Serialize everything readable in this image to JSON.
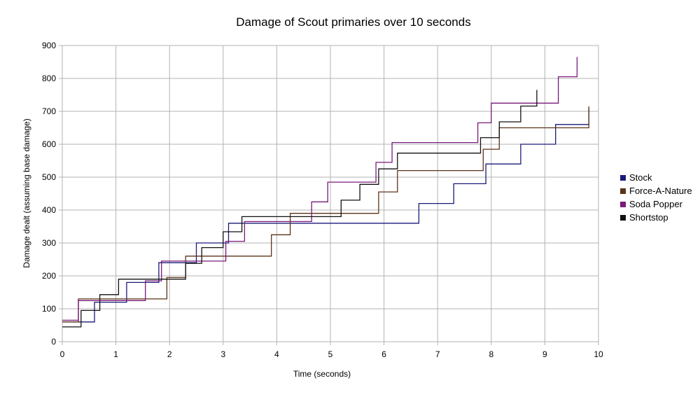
{
  "chart_data": {
    "type": "line",
    "title": "Damage of Scout primaries over 10 seconds",
    "xlabel": "Time (seconds)",
    "ylabel": "Damage dealt (assuming base damage)",
    "xlim": [
      0,
      10
    ],
    "ylim": [
      0,
      900
    ],
    "x_ticks": [
      "0",
      "1",
      "2",
      "3",
      "4",
      "5",
      "6",
      "7",
      "8",
      "9",
      "10"
    ],
    "y_ticks": [
      "0",
      "100",
      "200",
      "300",
      "400",
      "500",
      "600",
      "700",
      "800",
      "900"
    ],
    "grid": true,
    "legend_position": "right",
    "step": true,
    "series": [
      {
        "name": "Stock",
        "color": "#1a1a7a",
        "x": [
          0,
          0.6,
          0.6,
          1.2,
          1.2,
          1.8,
          1.8,
          2.5,
          2.5,
          3.1,
          3.1,
          3.7,
          3.7,
          6.65,
          6.65,
          7.3,
          7.3,
          7.9,
          7.9,
          8.55,
          8.55,
          9.2,
          9.2,
          9.82,
          9.82
        ],
        "y": [
          60,
          60,
          120,
          120,
          180,
          180,
          240,
          240,
          300,
          300,
          360,
          360,
          360,
          360,
          420,
          420,
          480,
          480,
          540,
          540,
          600,
          600,
          660,
          660,
          710
        ]
      },
      {
        "name": "Force-A-Nature",
        "color": "#5c3317",
        "x": [
          0,
          0.3,
          0.3,
          1.95,
          1.95,
          2.3,
          2.3,
          2.9,
          2.9,
          3.9,
          3.9,
          4.25,
          4.25,
          5.9,
          5.9,
          6.25,
          6.25,
          7.85,
          7.85,
          8.15,
          8.15,
          9.82,
          9.82
        ],
        "y": [
          60,
          60,
          130,
          130,
          195,
          195,
          260,
          260,
          260,
          260,
          325,
          325,
          390,
          390,
          455,
          455,
          520,
          520,
          585,
          585,
          650,
          650,
          715
        ]
      },
      {
        "name": "Soda Popper",
        "color": "#7a1a7a",
        "x": [
          0,
          0.3,
          0.3,
          1.55,
          1.55,
          1.85,
          1.85,
          3.05,
          3.05,
          3.4,
          3.4,
          4.65,
          4.65,
          4.95,
          4.95,
          5.85,
          5.85,
          6.15,
          6.15,
          6.5,
          6.5,
          7.75,
          7.75,
          8.0,
          8.0,
          9.25,
          9.25,
          9.6,
          9.6
        ],
        "y": [
          65,
          65,
          125,
          125,
          185,
          185,
          245,
          245,
          305,
          305,
          365,
          365,
          425,
          425,
          485,
          485,
          545,
          545,
          605,
          605,
          605,
          605,
          665,
          665,
          725,
          725,
          805,
          805,
          865
        ]
      },
      {
        "name": "Shortstop",
        "color": "#111111",
        "x": [
          0,
          0.35,
          0.35,
          0.7,
          0.7,
          1.05,
          1.05,
          2.3,
          2.3,
          2.6,
          2.6,
          3.0,
          3.0,
          3.35,
          3.35,
          3.65,
          3.65,
          5.2,
          5.2,
          5.55,
          5.55,
          5.9,
          5.9,
          6.25,
          6.25,
          7.8,
          7.8,
          8.15,
          8.15,
          8.55,
          8.55,
          8.85,
          8.85
        ],
        "y": [
          45,
          45,
          95,
          95,
          143,
          143,
          190,
          190,
          238,
          238,
          286,
          286,
          334,
          334,
          380,
          380,
          380,
          380,
          430,
          430,
          478,
          478,
          525,
          525,
          573,
          573,
          620,
          620,
          668,
          668,
          716,
          716,
          765
        ]
      }
    ]
  }
}
